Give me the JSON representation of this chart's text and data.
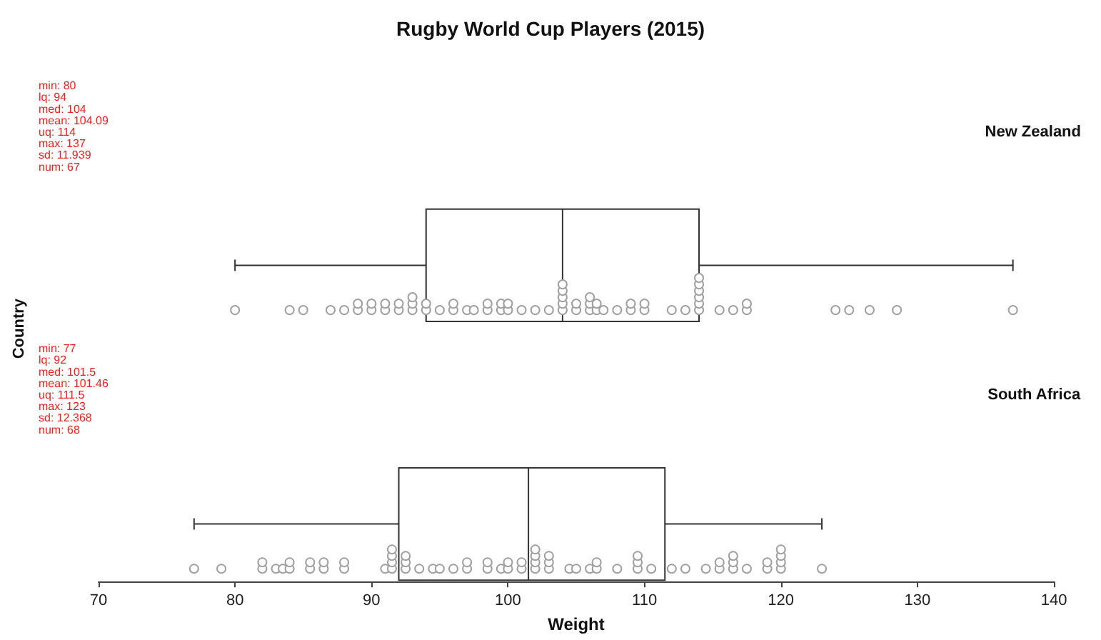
{
  "chart_data": {
    "type": "box",
    "orientation": "horizontal",
    "title": "Rugby World Cup Players (2015)",
    "xlabel": "Weight",
    "ylabel": "Country",
    "categories": [
      "New Zealand",
      "South Africa"
    ],
    "boxes": [
      {
        "low": 80,
        "q1": 94,
        "median": 104,
        "q3": 114,
        "high": 137
      },
      {
        "low": 77,
        "q1": 92,
        "median": 101.5,
        "q3": 111.5,
        "high": 123
      }
    ],
    "color": "#333333",
    "series": [
      {
        "type": "scatter",
        "color": "#a0a0a0",
        "marker": "circle",
        "x": [
          "New Zealand",
          "New Zealand",
          "New Zealand",
          "New Zealand",
          "New Zealand",
          "New Zealand",
          "New Zealand",
          "New Zealand",
          "New Zealand",
          "New Zealand",
          "New Zealand",
          "New Zealand",
          "New Zealand",
          "New Zealand",
          "New Zealand",
          "New Zealand",
          "New Zealand",
          "New Zealand",
          "New Zealand",
          "New Zealand",
          "New Zealand",
          "New Zealand",
          "New Zealand",
          "New Zealand",
          "New Zealand",
          "New Zealand",
          "New Zealand",
          "New Zealand",
          "New Zealand",
          "New Zealand",
          "New Zealand",
          "New Zealand",
          "New Zealand",
          "New Zealand",
          "New Zealand",
          "New Zealand",
          "New Zealand",
          "New Zealand",
          "New Zealand",
          "New Zealand",
          "New Zealand",
          "New Zealand",
          "New Zealand",
          "New Zealand",
          "New Zealand",
          "New Zealand",
          "New Zealand",
          "New Zealand",
          "New Zealand",
          "New Zealand",
          "New Zealand",
          "New Zealand",
          "New Zealand",
          "New Zealand",
          "New Zealand",
          "New Zealand",
          "New Zealand",
          "New Zealand",
          "New Zealand",
          "New Zealand",
          "New Zealand",
          "New Zealand",
          "New Zealand",
          "New Zealand",
          "New Zealand",
          "New Zealand",
          "New Zealand",
          "South Africa",
          "South Africa",
          "South Africa",
          "South Africa",
          "South Africa",
          "South Africa",
          "South Africa",
          "South Africa",
          "South Africa",
          "South Africa",
          "South Africa",
          "South Africa",
          "South Africa",
          "South Africa",
          "South Africa",
          "South Africa",
          "South Africa",
          "South Africa",
          "South Africa",
          "South Africa",
          "South Africa",
          "South Africa",
          "South Africa",
          "South Africa",
          "South Africa",
          "South Africa",
          "South Africa",
          "South Africa",
          "South Africa",
          "South Africa",
          "South Africa",
          "South Africa",
          "South Africa",
          "South Africa",
          "South Africa",
          "South Africa",
          "South Africa",
          "South Africa",
          "South Africa",
          "South Africa",
          "South Africa",
          "South Africa",
          "South Africa",
          "South Africa",
          "South Africa",
          "South Africa",
          "South Africa",
          "South Africa",
          "South Africa",
          "South Africa",
          "South Africa",
          "South Africa",
          "South Africa",
          "South Africa",
          "South Africa",
          "South Africa",
          "South Africa",
          "South Africa",
          "South Africa",
          "South Africa",
          "South Africa",
          "South Africa",
          "South Africa",
          "South Africa",
          "South Africa",
          "South Africa",
          "South Africa",
          "South Africa"
        ],
        "values": [
          80,
          84,
          85,
          87,
          88,
          89,
          89,
          90,
          90,
          91,
          91,
          92,
          92,
          93,
          93,
          93,
          94,
          94,
          95,
          96,
          96,
          97,
          97.5,
          98.5,
          98.5,
          99.5,
          99.5,
          100,
          100,
          101,
          102,
          103,
          104,
          104,
          104,
          104,
          104,
          105,
          105,
          106,
          106,
          106,
          106.5,
          106.5,
          107,
          108,
          109,
          109,
          110,
          110,
          112,
          113,
          114,
          114,
          114,
          114,
          114,
          114,
          115.5,
          116.5,
          117.5,
          117.5,
          124,
          125,
          126.5,
          128.5,
          137,
          77,
          79,
          82,
          82,
          83,
          83.5,
          84,
          84,
          85.5,
          85.5,
          86.5,
          86.5,
          88,
          88,
          91,
          91.5,
          91.5,
          91.5,
          91.5,
          92.5,
          92.5,
          92.5,
          93.5,
          94.5,
          95,
          96,
          97,
          97,
          98.5,
          98.5,
          99.5,
          100,
          100,
          101,
          101,
          102,
          102,
          102,
          102,
          103,
          103,
          103,
          104.5,
          105,
          106,
          106.5,
          106.5,
          108,
          109.5,
          109.5,
          109.5,
          110.5,
          112,
          113,
          114.5,
          115.5,
          115.5,
          116.5,
          116.5,
          116.5,
          117.5,
          119,
          119,
          120,
          120,
          120,
          120,
          123
        ]
      }
    ],
    "annotations": [
      "min: 80\nlq: 94\nmed: 104\nmean: 104.09\nuq: 114\nmax: 137\nsd: 11.939\nnum: 67",
      "min: 77\nlq: 92\nmed: 101.5\nmean: 101.46\nuq: 111.5\nmax: 123\nsd: 12.368\nnum: 68"
    ],
    "xlim": [
      70,
      140
    ],
    "xticks": [
      70,
      80,
      90,
      100,
      110,
      120,
      130,
      140
    ],
    "grid": false
  }
}
